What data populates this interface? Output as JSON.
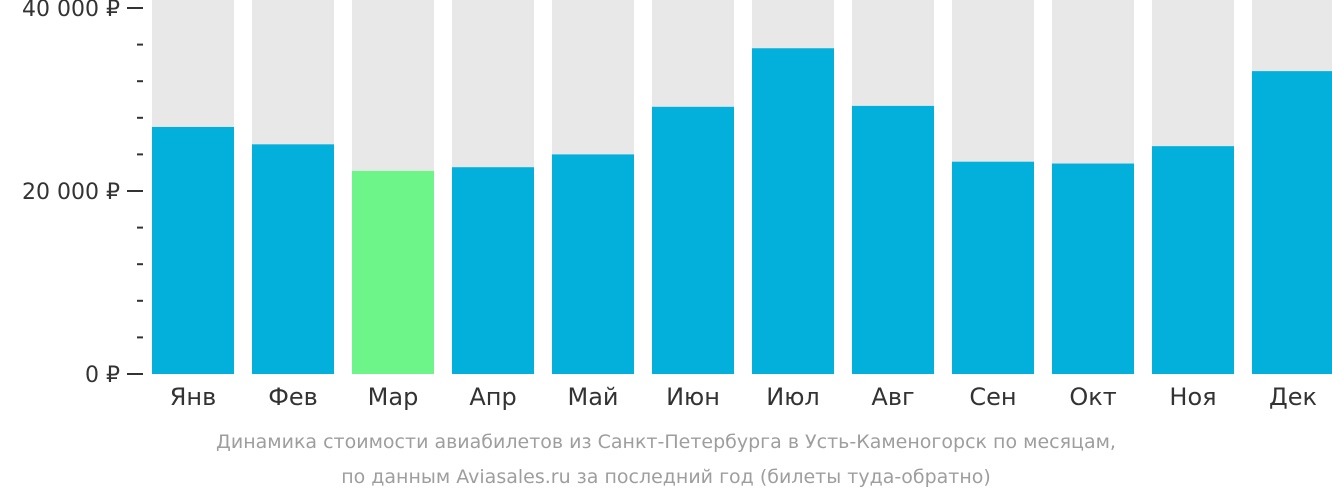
{
  "chart_data": {
    "type": "bar",
    "categories": [
      "Янв",
      "Фев",
      "Мар",
      "Апр",
      "Май",
      "Июн",
      "Июл",
      "Авг",
      "Сен",
      "Окт",
      "Ноя",
      "Дек"
    ],
    "values": [
      27000,
      25100,
      22200,
      22600,
      24000,
      29200,
      35600,
      29300,
      23200,
      23000,
      24900,
      33100
    ],
    "highlight_index": 2,
    "ylim": [
      0,
      40000
    ],
    "y_ticks": [
      {
        "value": 0,
        "label": "0 ₽"
      },
      {
        "value": 20000,
        "label": "20 000 ₽"
      },
      {
        "value": 40000,
        "label": "40 000 ₽"
      }
    ],
    "y_minor_step": 4000,
    "colors": {
      "bar": "#03b0dc",
      "highlight": "#6df58a",
      "background_bar": "#e8e8e8",
      "axis_text": "#333333",
      "caption": "#9e9e9e"
    },
    "legend": "none",
    "grid": false
  },
  "caption": {
    "line1": "Динамика стоимости авиабилетов из Санкт-Петербурга в Усть-Каменогорск по месяцам,",
    "line2": "по данным Aviasales.ru за последний год (билеты туда-обратно)"
  }
}
